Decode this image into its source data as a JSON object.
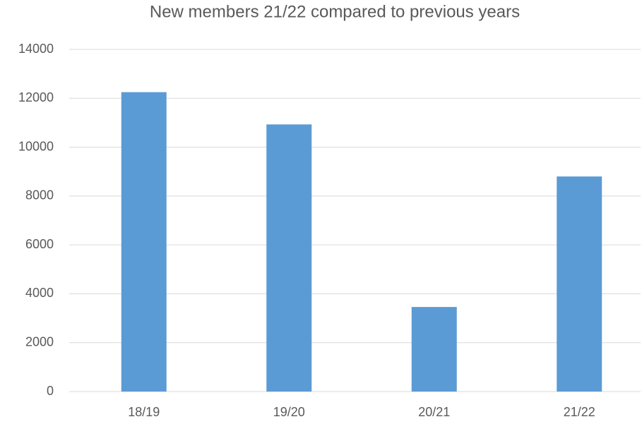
{
  "chart_data": {
    "type": "bar",
    "title": "New members 21/22 compared to previous years",
    "categories": [
      "18/19",
      "19/20",
      "20/21",
      "21/22"
    ],
    "values": [
      12250,
      10930,
      3460,
      8800
    ],
    "color": "#5b9bd5",
    "ylim": [
      0,
      14000
    ],
    "yticks": [
      0,
      2000,
      4000,
      6000,
      8000,
      10000,
      12000,
      14000
    ],
    "grid": true
  }
}
